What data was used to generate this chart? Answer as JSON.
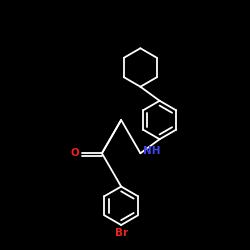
{
  "background_color": "#000000",
  "line_color": "#ffffff",
  "NH_color": "#4444ee",
  "O_color": "#ee2222",
  "Br_color": "#ee2222",
  "label_NH": "NH",
  "label_O": "O",
  "label_Br": "Br",
  "fig_width": 2.5,
  "fig_height": 2.5,
  "dpi": 100,
  "lw": 1.3
}
